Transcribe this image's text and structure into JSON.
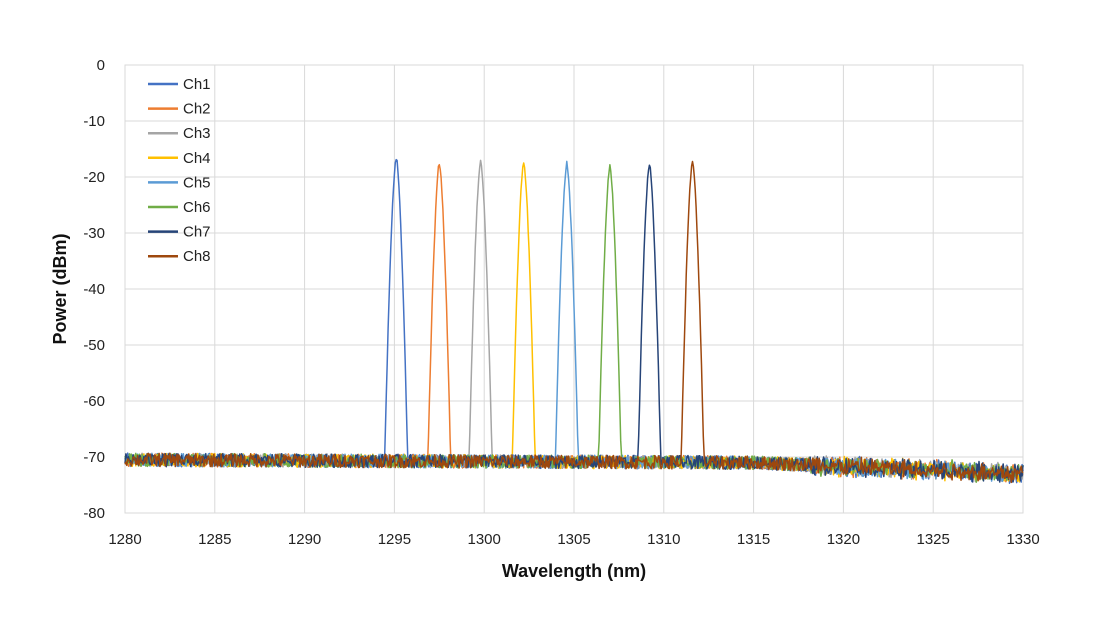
{
  "chart_data": {
    "type": "line",
    "title": "",
    "xlabel": "Wavelength (nm)",
    "ylabel": "Power (dBm)",
    "xlim": [
      1280,
      1330
    ],
    "ylim": [
      -80,
      0
    ],
    "xticks": [
      "1280",
      "1285",
      "1290",
      "1295",
      "1300",
      "1305",
      "1310",
      "1315",
      "1320",
      "1325",
      "1330"
    ],
    "yticks": [
      "0",
      "-10",
      "-20",
      "-30",
      "-40",
      "-50",
      "-60",
      "-70",
      "-80"
    ],
    "grid": true,
    "legend": "top-left",
    "noise_floor": {
      "start_dbm": -70.5,
      "mid_wavelength": 1315,
      "mid_dbm": -71,
      "end_dbm": -73
    },
    "series": [
      {
        "name": "Ch1",
        "color": "#4472C4",
        "peak_wavelength": 1295.1,
        "peak_dbm": -16.5
      },
      {
        "name": "Ch2",
        "color": "#ED7D31",
        "peak_wavelength": 1297.5,
        "peak_dbm": -17.5
      },
      {
        "name": "Ch3",
        "color": "#A5A5A5",
        "peak_wavelength": 1299.8,
        "peak_dbm": -17.0
      },
      {
        "name": "Ch4",
        "color": "#FFC000",
        "peak_wavelength": 1302.2,
        "peak_dbm": -17.3
      },
      {
        "name": "Ch5",
        "color": "#5B9BD5",
        "peak_wavelength": 1304.6,
        "peak_dbm": -17.5
      },
      {
        "name": "Ch6",
        "color": "#70AD47",
        "peak_wavelength": 1307.0,
        "peak_dbm": -18.0
      },
      {
        "name": "Ch7",
        "color": "#264478",
        "peak_wavelength": 1309.2,
        "peak_dbm": -17.6
      },
      {
        "name": "Ch8",
        "color": "#9E480E",
        "peak_wavelength": 1311.6,
        "peak_dbm": -17.2
      }
    ]
  }
}
